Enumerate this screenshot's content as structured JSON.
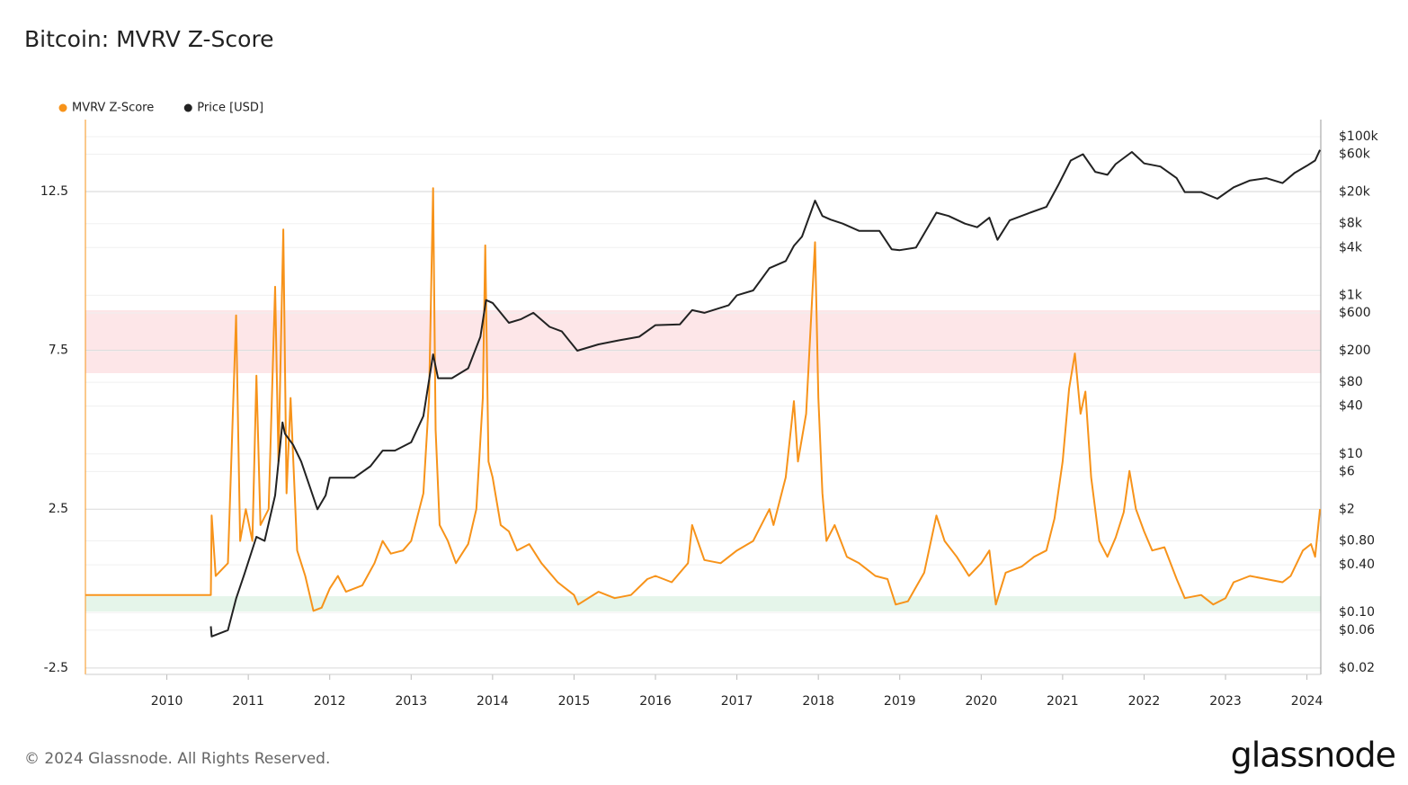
{
  "chart_data": {
    "type": "line",
    "title": "Bitcoin: MVRV Z-Score",
    "footer": "© 2024 Glassnode. All Rights Reserved.",
    "brand": "glassnode",
    "xlim": [
      2009,
      2024.17
    ],
    "xticks": [
      2010,
      2011,
      2012,
      2013,
      2014,
      2015,
      2016,
      2017,
      2018,
      2019,
      2020,
      2021,
      2022,
      2023,
      2024
    ],
    "ylim": [
      -2.7,
      14.76
    ],
    "yticks": [
      -2.5,
      2.5,
      7.5,
      12.5
    ],
    "y2lim": [
      0.0166,
      164000
    ],
    "y2log": true,
    "y2ticks": [
      {
        "value": 100000,
        "label": "$100k"
      },
      {
        "value": 60000,
        "label": "$60k"
      },
      {
        "value": 20000,
        "label": "$20k"
      },
      {
        "value": 8000,
        "label": "$8k"
      },
      {
        "value": 4000,
        "label": "$4k"
      },
      {
        "value": 1000,
        "label": "$1k"
      },
      {
        "value": 600,
        "label": "$600"
      },
      {
        "value": 200,
        "label": "$200"
      },
      {
        "value": 80,
        "label": "$80"
      },
      {
        "value": 40,
        "label": "$40"
      },
      {
        "value": 10,
        "label": "$10"
      },
      {
        "value": 6,
        "label": "$6"
      },
      {
        "value": 2,
        "label": "$2"
      },
      {
        "value": 0.8,
        "label": "$0.80"
      },
      {
        "value": 0.4,
        "label": "$0.40"
      },
      {
        "value": 0.1,
        "label": "$0.10"
      },
      {
        "value": 0.06,
        "label": "$0.06"
      },
      {
        "value": 0.02,
        "label": "$0.02"
      }
    ],
    "grid": true,
    "bands": [
      {
        "from": -0.72,
        "to": -0.24,
        "color": "#e5f5ea"
      },
      {
        "from": 6.78,
        "to": 8.76,
        "color": "#fde6e8"
      }
    ],
    "series": [
      {
        "name": "MVRV Z-Score",
        "color": "#f7931a",
        "x": [
          2009,
          2010.54,
          2010.55,
          2010.6,
          2010.75,
          2010.85,
          2010.9,
          2010.97,
          2011.05,
          2011.1,
          2011.15,
          2011.25,
          2011.33,
          2011.37,
          2011.43,
          2011.47,
          2011.52,
          2011.6,
          2011.7,
          2011.8,
          2011.9,
          2012.0,
          2012.1,
          2012.2,
          2012.4,
          2012.55,
          2012.65,
          2012.75,
          2012.9,
          2013.0,
          2013.15,
          2013.22,
          2013.27,
          2013.3,
          2013.35,
          2013.45,
          2013.55,
          2013.7,
          2013.8,
          2013.88,
          2013.91,
          2013.95,
          2014.0,
          2014.1,
          2014.2,
          2014.3,
          2014.45,
          2014.6,
          2014.8,
          2015.0,
          2015.05,
          2015.3,
          2015.5,
          2015.7,
          2015.9,
          2016.0,
          2016.2,
          2016.4,
          2016.45,
          2016.6,
          2016.8,
          2017.0,
          2017.2,
          2017.4,
          2017.45,
          2017.6,
          2017.7,
          2017.75,
          2017.85,
          2017.96,
          2018.0,
          2018.05,
          2018.1,
          2018.2,
          2018.35,
          2018.5,
          2018.7,
          2018.85,
          2018.95,
          2019.1,
          2019.3,
          2019.45,
          2019.55,
          2019.7,
          2019.85,
          2020.0,
          2020.1,
          2020.18,
          2020.3,
          2020.5,
          2020.65,
          2020.8,
          2020.9,
          2021.0,
          2021.08,
          2021.15,
          2021.22,
          2021.28,
          2021.35,
          2021.45,
          2021.55,
          2021.65,
          2021.75,
          2021.82,
          2021.9,
          2022.0,
          2022.1,
          2022.25,
          2022.4,
          2022.5,
          2022.7,
          2022.85,
          2023.0,
          2023.1,
          2023.3,
          2023.5,
          2023.7,
          2023.8,
          2023.95,
          2024.05,
          2024.1,
          2024.16
        ],
        "values": [
          -0.2,
          -0.2,
          2.3,
          0.4,
          0.8,
          8.6,
          1.5,
          2.5,
          1.5,
          6.7,
          2.0,
          2.5,
          9.5,
          4,
          11.3,
          3,
          6,
          1.2,
          0.4,
          -0.7,
          -0.6,
          0.0,
          0.4,
          -0.1,
          0.1,
          0.8,
          1.5,
          1.1,
          1.2,
          1.5,
          3,
          6,
          12.6,
          5,
          2.0,
          1.5,
          0.8,
          1.4,
          2.5,
          6,
          10.8,
          4,
          3.5,
          2,
          1.8,
          1.2,
          1.4,
          0.8,
          0.2,
          -0.2,
          -0.5,
          -0.1,
          -0.3,
          -0.2,
          0.3,
          0.4,
          0.2,
          0.8,
          2.0,
          0.9,
          0.8,
          1.2,
          1.5,
          2.5,
          2.0,
          3.5,
          5.9,
          4.0,
          5.5,
          10.9,
          6.0,
          3,
          1.5,
          2.0,
          1.0,
          0.8,
          0.4,
          0.3,
          -0.5,
          -0.4,
          0.5,
          2.3,
          1.5,
          1.0,
          0.4,
          0.8,
          1.2,
          -0.5,
          0.5,
          0.7,
          1.0,
          1.2,
          2.2,
          4,
          6.3,
          7.4,
          5.5,
          6.2,
          3.5,
          1.5,
          1.0,
          1.6,
          2.4,
          3.7,
          2.5,
          1.8,
          1.2,
          1.3,
          0.3,
          -0.3,
          -0.2,
          -0.5,
          -0.3,
          0.2,
          0.4,
          0.3,
          0.2,
          0.4,
          1.2,
          1.4,
          1.0,
          2.5
        ]
      },
      {
        "name": "Price [USD]",
        "color": "#222222",
        "axis": "y2",
        "x": [
          2010.54,
          2010.55,
          2010.75,
          2010.85,
          2010.95,
          2011.1,
          2011.2,
          2011.33,
          2011.42,
          2011.45,
          2011.55,
          2011.65,
          2011.75,
          2011.85,
          2011.95,
          2012.0,
          2012.1,
          2012.3,
          2012.5,
          2012.65,
          2012.8,
          2013.0,
          2013.15,
          2013.27,
          2013.33,
          2013.5,
          2013.7,
          2013.85,
          2013.92,
          2014.0,
          2014.1,
          2014.2,
          2014.35,
          2014.5,
          2014.7,
          2014.85,
          2015.04,
          2015.3,
          2015.55,
          2015.8,
          2016.0,
          2016.3,
          2016.45,
          2016.6,
          2016.9,
          2017.0,
          2017.2,
          2017.4,
          2017.6,
          2017.7,
          2017.8,
          2017.96,
          2018.05,
          2018.15,
          2018.3,
          2018.5,
          2018.75,
          2018.9,
          2019.0,
          2019.2,
          2019.45,
          2019.6,
          2019.8,
          2019.95,
          2020.1,
          2020.2,
          2020.35,
          2020.6,
          2020.8,
          2020.95,
          2021.1,
          2021.25,
          2021.4,
          2021.55,
          2021.65,
          2021.85,
          2022.0,
          2022.2,
          2022.4,
          2022.5,
          2022.7,
          2022.9,
          2023.1,
          2023.3,
          2023.5,
          2023.7,
          2023.85,
          2024.0,
          2024.1,
          2024.16
        ],
        "values": [
          0.067,
          0.05,
          0.06,
          0.15,
          0.3,
          0.9,
          0.8,
          3,
          25,
          18,
          13,
          8,
          4,
          2.0,
          3,
          5,
          5,
          5,
          7,
          11,
          11,
          14,
          30,
          180,
          90,
          90,
          120,
          300,
          870,
          800,
          600,
          450,
          500,
          600,
          400,
          350,
          200,
          240,
          270,
          300,
          420,
          430,
          650,
          600,
          750,
          1000,
          1150,
          2200,
          2700,
          4200,
          5500,
          15600,
          10000,
          9000,
          8000,
          6500,
          6500,
          3800,
          3700,
          4000,
          11000,
          10000,
          8000,
          7200,
          9500,
          5000,
          8800,
          11000,
          13000,
          25000,
          50000,
          60000,
          36000,
          33000,
          45000,
          64000,
          46000,
          42000,
          30000,
          20000,
          20000,
          16500,
          23000,
          28000,
          30000,
          26000,
          35000,
          43000,
          50000,
          68000
        ]
      }
    ]
  }
}
